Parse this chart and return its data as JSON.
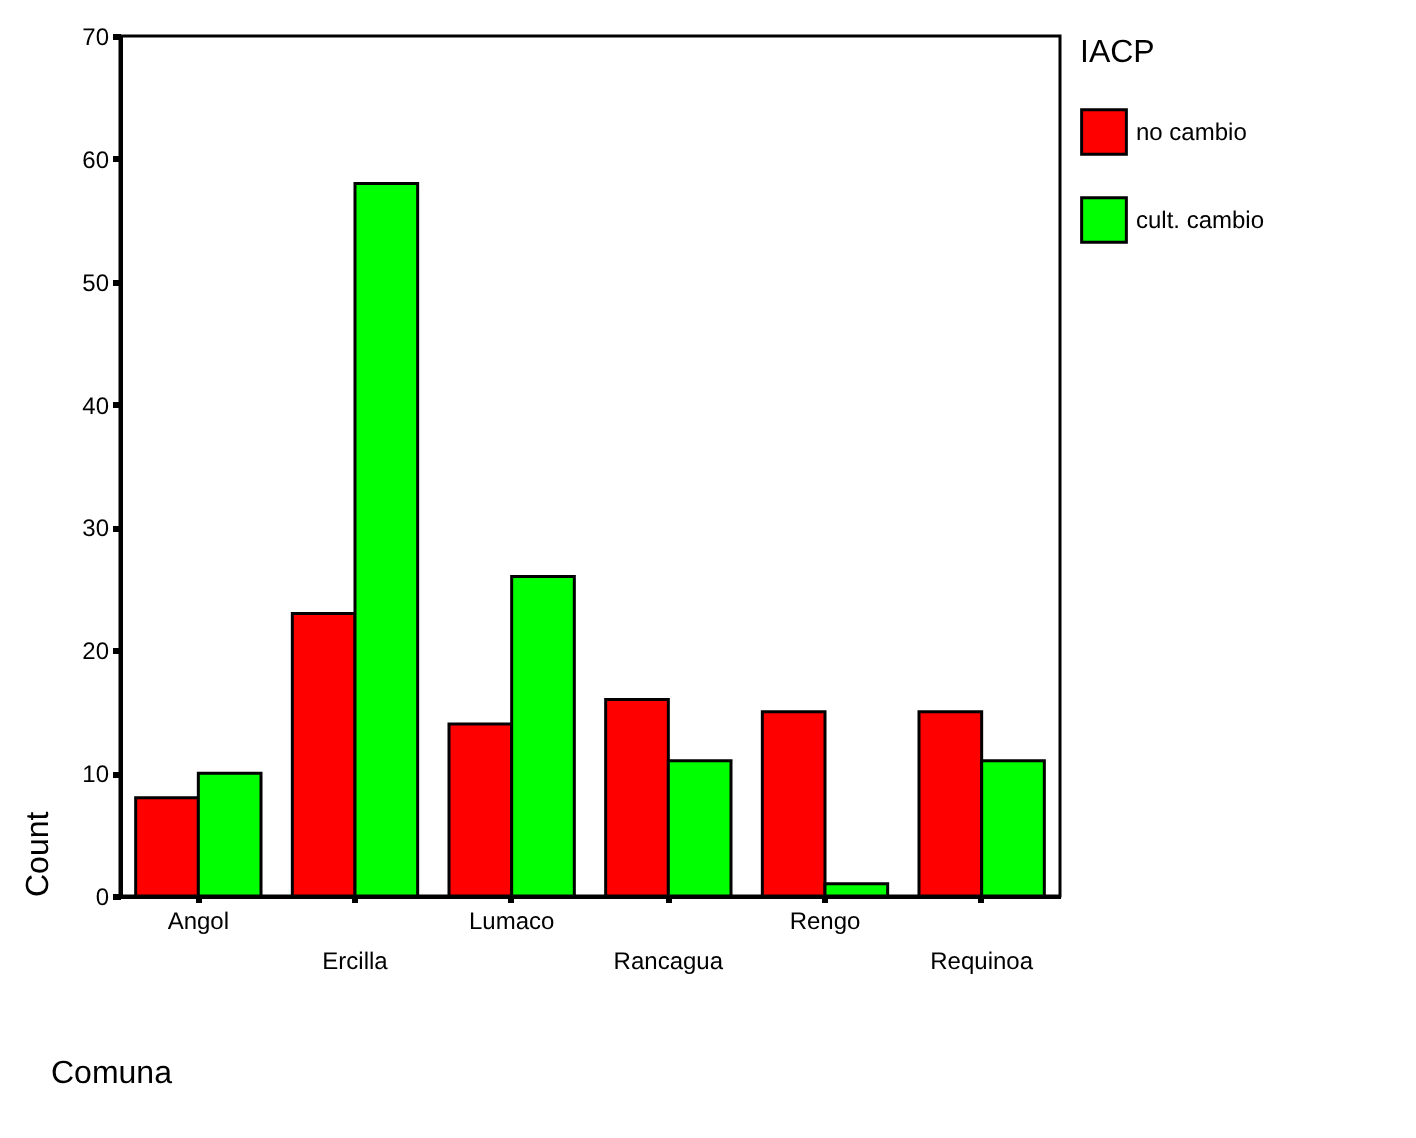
{
  "chart_data": {
    "type": "bar",
    "xlabel": "Comuna",
    "ylabel": "Count",
    "legend_title": "IACP",
    "categories": [
      "Angol",
      "Ercilla",
      "Lumaco",
      "Rancagua",
      "Rengo",
      "Requinoa"
    ],
    "series": [
      {
        "name": "no cambio",
        "color": "#ff0000",
        "values": [
          8,
          23,
          14,
          16,
          15,
          15
        ]
      },
      {
        "name": "cult. cambio",
        "color": "#00ff00",
        "values": [
          10,
          58,
          26,
          11,
          1,
          11
        ]
      }
    ],
    "ylim": [
      0,
      70
    ],
    "yticks": [
      0,
      10,
      20,
      30,
      40,
      50,
      60,
      70
    ],
    "grid": false,
    "legend": "right"
  }
}
